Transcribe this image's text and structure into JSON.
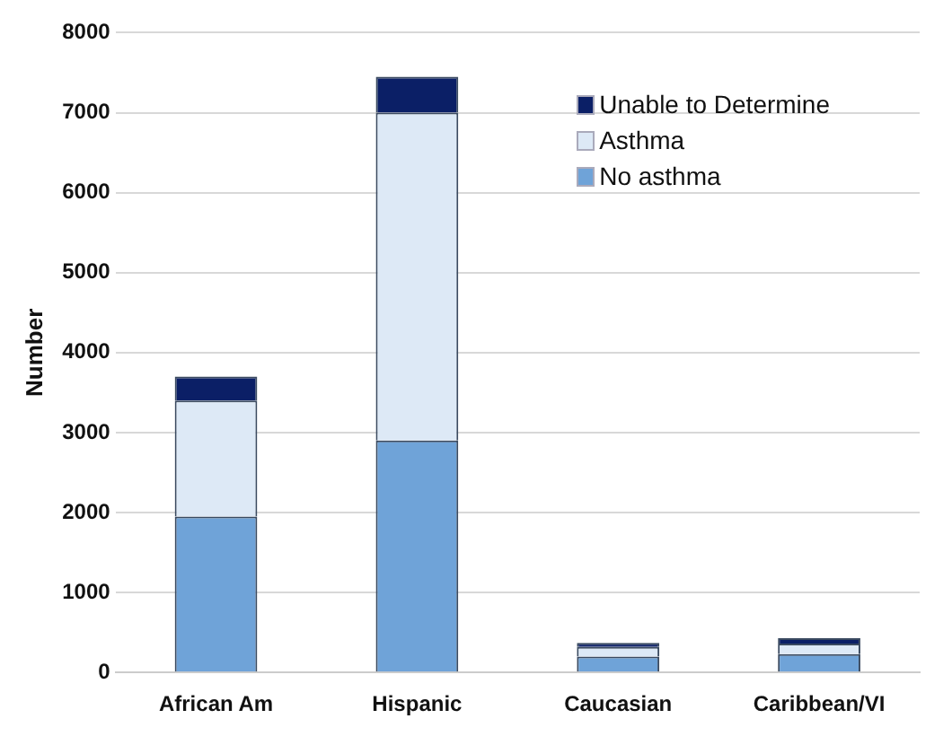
{
  "chart_data": {
    "type": "bar",
    "stacked": true,
    "ylabel": "Number",
    "categories": [
      "African Am",
      "Hispanic",
      "Caucasian",
      "Caribbean/VI"
    ],
    "series": [
      {
        "name": "No asthma",
        "color": "#6fa3d8",
        "values": [
          1950,
          2900,
          200,
          230
        ]
      },
      {
        "name": "Asthma",
        "color": "#dde9f6",
        "values": [
          1450,
          4100,
          120,
          130
        ]
      },
      {
        "name": "Unable to Determine",
        "color": "#0b1f66",
        "values": [
          300,
          450,
          50,
          70
        ]
      }
    ],
    "ylim": [
      0,
      8000
    ],
    "yticks": [
      0,
      1000,
      2000,
      3000,
      4000,
      5000,
      6000,
      7000,
      8000
    ],
    "grid": "y",
    "legend": "top right"
  }
}
